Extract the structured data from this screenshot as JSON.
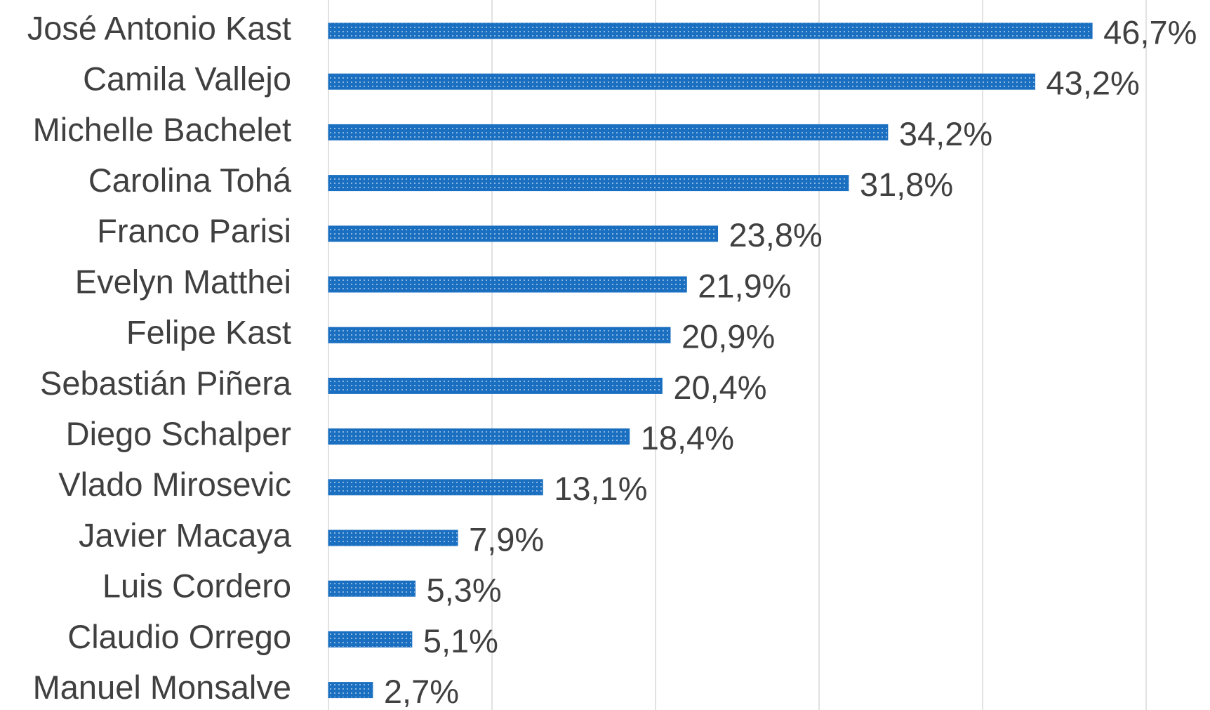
{
  "chart_data": {
    "type": "bar",
    "orientation": "horizontal",
    "categories": [
      "José Antonio Kast",
      "Camila Vallejo",
      "Michelle Bachelet",
      "Carolina Tohá",
      "Franco Parisi",
      "Evelyn Matthei",
      "Felipe Kast",
      "Sebastián Piñera",
      "Diego Schalper",
      "Vlado Mirosevic",
      "Javier Macaya",
      "Luis Cordero",
      "Claudio Orrego",
      "Manuel Monsalve"
    ],
    "values": [
      46.7,
      43.2,
      34.2,
      31.8,
      23.8,
      21.9,
      20.9,
      20.4,
      18.4,
      13.1,
      7.9,
      5.3,
      5.1,
      2.7
    ],
    "value_labels": [
      "46,7%",
      "43,2%",
      "34,2%",
      "31,8%",
      "23,8%",
      "21,9%",
      "20,9%",
      "20,4%",
      "18,4%",
      "13,1%",
      "7,9%",
      "5,3%",
      "5,1%",
      "2,7%"
    ],
    "color": "#1b6fc0",
    "xlim": [
      0,
      50
    ],
    "xticks": [
      0,
      10,
      20,
      30,
      40,
      50
    ],
    "grid": true
  }
}
